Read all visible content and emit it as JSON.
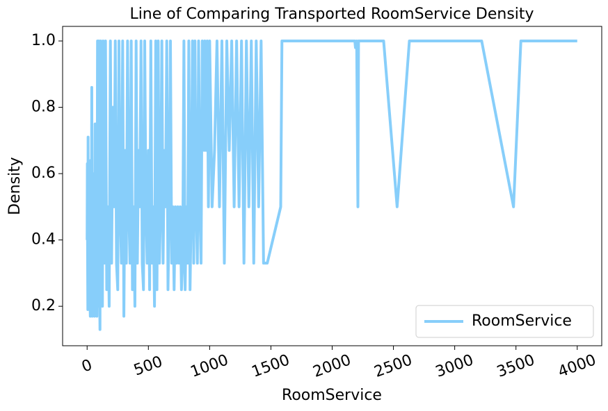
{
  "chart_data": {
    "type": "line",
    "title": "Line of Comparing Transported RoomService Density",
    "x_label": "RoomService",
    "y_label": "Density",
    "xlim": [
      -200,
      4200
    ],
    "ylim": [
      0.081,
      1.044
    ],
    "xticks": [
      0,
      500,
      1000,
      1500,
      2000,
      2500,
      3000,
      3500,
      4000
    ],
    "yticks": [
      {
        "value": 0.2,
        "label": "0.2"
      },
      {
        "value": 0.4,
        "label": "0.4"
      },
      {
        "value": 0.6,
        "label": "0.6"
      },
      {
        "value": 0.8,
        "label": "0.8"
      },
      {
        "value": 1.0,
        "label": "1.0"
      }
    ],
    "legend_position": "lower right",
    "x": [
      0,
      2,
      4,
      6,
      8,
      10,
      14,
      18,
      22,
      26,
      30,
      34,
      38,
      42,
      46,
      50,
      55,
      60,
      65,
      70,
      75,
      80,
      85,
      90,
      95,
      100,
      105,
      110,
      115,
      120,
      125,
      130,
      140,
      150,
      160,
      170,
      180,
      190,
      200,
      210,
      220,
      230,
      240,
      250,
      260,
      270,
      280,
      290,
      300,
      310,
      320,
      330,
      340,
      350,
      360,
      370,
      380,
      390,
      400,
      410,
      420,
      430,
      440,
      450,
      460,
      470,
      480,
      490,
      500,
      510,
      520,
      530,
      540,
      550,
      560,
      570,
      580,
      590,
      600,
      610,
      620,
      630,
      640,
      650,
      660,
      670,
      680,
      690,
      700,
      710,
      720,
      730,
      740,
      750,
      760,
      770,
      780,
      790,
      800,
      810,
      820,
      830,
      840,
      850,
      860,
      870,
      880,
      890,
      900,
      910,
      920,
      930,
      940,
      955,
      960,
      970,
      980,
      990,
      1000,
      1020,
      1040,
      1060,
      1080,
      1100,
      1120,
      1140,
      1160,
      1180,
      1200,
      1220,
      1240,
      1260,
      1280,
      1300,
      1320,
      1340,
      1360,
      1380,
      1400,
      1420,
      1440,
      1470,
      1580,
      1590,
      2185,
      2190,
      2200,
      2210,
      2215,
      2420,
      2530,
      2630,
      3220,
      3480,
      3540,
      4000
    ],
    "series": [
      {
        "name": "RoomService",
        "color": "#87cefa",
        "values": [
          0.4,
          0.63,
          0.35,
          0.19,
          0.71,
          0.2,
          0.5,
          0.33,
          0.25,
          0.17,
          0.64,
          0.2,
          0.86,
          0.17,
          0.5,
          0.33,
          0.6,
          0.17,
          0.75,
          0.25,
          0.5,
          0.17,
          1.0,
          0.2,
          1.0,
          0.33,
          0.13,
          1.0,
          0.25,
          0.67,
          0.2,
          1.0,
          0.33,
          1.0,
          0.25,
          0.5,
          0.2,
          1.0,
          0.33,
          0.8,
          0.5,
          1.0,
          0.33,
          0.25,
          1.0,
          0.5,
          0.33,
          1.0,
          0.17,
          0.67,
          0.33,
          1.0,
          0.5,
          0.33,
          1.0,
          0.25,
          0.5,
          0.2,
          1.0,
          0.33,
          0.67,
          0.5,
          1.0,
          0.33,
          0.25,
          1.0,
          0.5,
          0.33,
          0.67,
          0.25,
          1.0,
          0.33,
          0.5,
          0.2,
          1.0,
          0.25,
          1.0,
          0.33,
          0.5,
          1.0,
          0.33,
          0.67,
          0.5,
          1.0,
          0.25,
          0.5,
          1.0,
          0.33,
          0.5,
          0.25,
          0.5,
          0.33,
          0.5,
          0.33,
          0.5,
          0.25,
          0.33,
          1.0,
          0.25,
          0.5,
          0.33,
          1.0,
          0.25,
          0.5,
          1.0,
          0.33,
          1.0,
          0.5,
          0.33,
          1.0,
          0.5,
          0.33,
          1.0,
          0.67,
          1.0,
          0.67,
          1.0,
          0.5,
          1.0,
          0.5,
          0.67,
          1.0,
          0.5,
          1.0,
          0.33,
          1.0,
          0.67,
          1.0,
          0.5,
          1.0,
          0.5,
          1.0,
          0.33,
          1.0,
          0.5,
          1.0,
          0.33,
          1.0,
          0.5,
          1.0,
          0.33,
          0.33,
          0.5,
          1.0,
          1.0,
          0.98,
          1.0,
          0.5,
          1.0,
          1.0,
          0.5,
          1.0,
          1.0,
          0.5,
          1.0,
          1.0
        ]
      }
    ]
  }
}
